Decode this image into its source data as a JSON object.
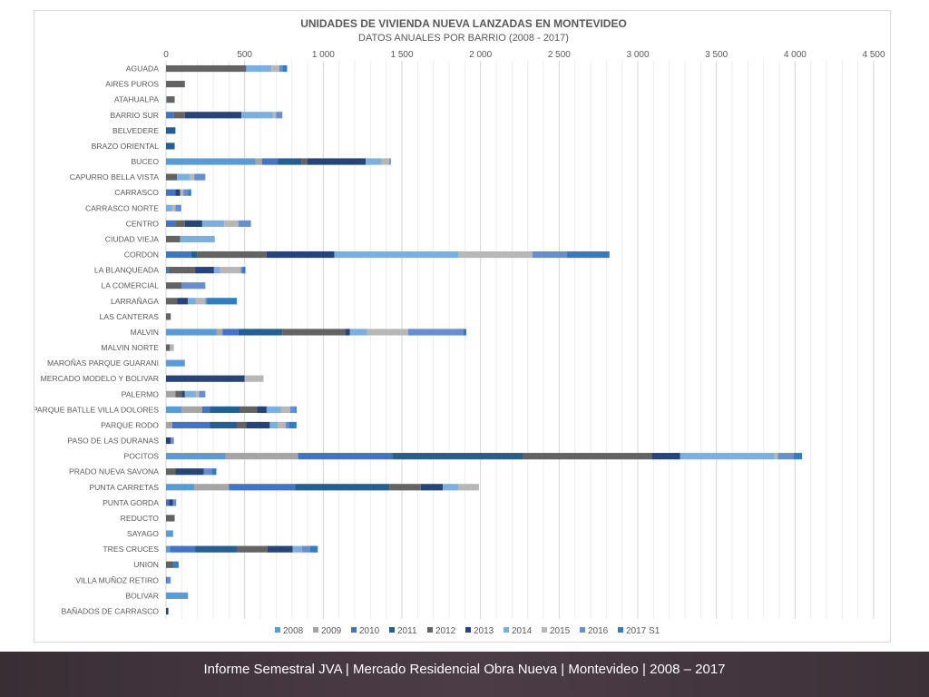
{
  "footer": {
    "text": "Informe Semestral JVA | Mercado Residencial Obra Nueva | Montevideo | 2008 – 2017"
  },
  "chart_data": {
    "type": "bar",
    "orientation": "horizontal",
    "stacked": true,
    "title": "UNIDADES DE VIVIENDA NUEVA LANZADAS EN MONTEVIDEO",
    "subtitle": "DATOS ANUALES POR BARRIO (2008 - 2017)",
    "xlim": [
      0,
      4500
    ],
    "x_ticks": [
      0,
      500,
      1000,
      1500,
      2000,
      2500,
      3000,
      3500,
      4000,
      4500
    ],
    "x_tick_labels": [
      "0",
      "500",
      "1 000",
      "1 500",
      "2 000",
      "2 500",
      "3 000",
      "3 500",
      "4 000",
      "4 500"
    ],
    "grid": "vertical",
    "legend_position": "bottom",
    "categories": [
      "AGUADA",
      "AIRES PUROS",
      "ATAHUALPA",
      "BARRIO SUR",
      "BELVEDERE",
      "BRAZO ORIENTAL",
      "BUCEO",
      "CAPURRO BELLA VISTA",
      "CARRASCO",
      "CARRASCO NORTE",
      "CENTRO",
      "CIUDAD VIEJA",
      "CORDON",
      "LA BLANQUEADA",
      "LA COMERCIAL",
      "LARRAÑAGA",
      "LAS CANTERAS",
      "MALVIN",
      "MALVIN NORTE",
      "MAROÑAS PARQUE GUARANI",
      "MERCADO MODELO Y BOLIVAR",
      "PALERMO",
      "PARQUE BATLLE VILLA DOLORES",
      "PARQUE RODO",
      "PASO DE LAS DURANAS",
      "POCITOS",
      "PRADO NUEVA SAVONA",
      "PUNTA CARRETAS",
      "PUNTA GORDA",
      "REDUCTO",
      "SAYAGO",
      "TRES CRUCES",
      "UNION",
      "VILLA MUÑOZ RETIRO",
      "BOLIVAR",
      "BAÑADOS DE CARRASCO"
    ],
    "series": [
      {
        "name": "2008",
        "color": "#5b9bd5",
        "values": [
          0,
          0,
          5,
          0,
          0,
          0,
          570,
          0,
          0,
          0,
          0,
          0,
          0,
          0,
          0,
          0,
          0,
          320,
          0,
          120,
          0,
          0,
          100,
          0,
          0,
          380,
          0,
          180,
          0,
          0,
          45,
          25,
          0,
          0,
          140,
          0
        ]
      },
      {
        "name": "2009",
        "color": "#a5a5a5",
        "values": [
          0,
          0,
          0,
          0,
          0,
          0,
          40,
          0,
          0,
          0,
          0,
          0,
          0,
          0,
          0,
          0,
          0,
          40,
          0,
          0,
          0,
          60,
          130,
          40,
          0,
          460,
          0,
          220,
          0,
          0,
          0,
          0,
          0,
          0,
          0,
          0
        ]
      },
      {
        "name": "2010",
        "color": "#4472c4",
        "values": [
          0,
          0,
          0,
          50,
          0,
          0,
          100,
          0,
          60,
          0,
          60,
          0,
          160,
          15,
          0,
          0,
          0,
          100,
          0,
          0,
          0,
          0,
          50,
          240,
          0,
          600,
          0,
          420,
          20,
          0,
          0,
          160,
          0,
          10,
          0,
          0
        ]
      },
      {
        "name": "2011",
        "color": "#255e91",
        "values": [
          0,
          0,
          0,
          0,
          60,
          55,
          150,
          0,
          0,
          0,
          0,
          0,
          40,
          0,
          0,
          0,
          0,
          280,
          0,
          0,
          0,
          0,
          190,
          170,
          0,
          830,
          0,
          600,
          0,
          0,
          0,
          270,
          0,
          0,
          0,
          0
        ]
      },
      {
        "name": "2012",
        "color": "#636363",
        "values": [
          510,
          120,
          50,
          70,
          0,
          0,
          40,
          70,
          0,
          0,
          60,
          90,
          440,
          170,
          100,
          70,
          30,
          400,
          25,
          0,
          0,
          40,
          110,
          60,
          0,
          820,
          60,
          200,
          0,
          55,
          0,
          190,
          50,
          0,
          0,
          0
        ]
      },
      {
        "name": "2013",
        "color": "#264478",
        "values": [
          0,
          0,
          0,
          360,
          0,
          0,
          370,
          0,
          30,
          0,
          110,
          0,
          430,
          120,
          0,
          70,
          0,
          30,
          0,
          0,
          500,
          20,
          60,
          150,
          30,
          180,
          180,
          140,
          25,
          0,
          0,
          160,
          0,
          0,
          0,
          15
        ]
      },
      {
        "name": "2014",
        "color": "#7cafdd",
        "values": [
          160,
          0,
          0,
          200,
          0,
          0,
          100,
          80,
          0,
          40,
          140,
          220,
          790,
          40,
          0,
          50,
          0,
          110,
          0,
          0,
          0,
          70,
          90,
          50,
          0,
          600,
          0,
          100,
          0,
          0,
          0,
          60,
          0,
          0,
          0,
          0
        ]
      },
      {
        "name": "2015",
        "color": "#b7b7b7",
        "values": [
          50,
          0,
          0,
          20,
          0,
          0,
          50,
          30,
          20,
          20,
          90,
          0,
          470,
          130,
          0,
          60,
          0,
          260,
          25,
          0,
          120,
          20,
          60,
          50,
          0,
          20,
          0,
          130,
          0,
          0,
          0,
          0,
          0,
          0,
          0,
          0
        ]
      },
      {
        "name": "2016",
        "color": "#698ed0",
        "values": [
          20,
          0,
          0,
          40,
          0,
          0,
          10,
          70,
          30,
          25,
          80,
          0,
          220,
          10,
          150,
          10,
          0,
          350,
          0,
          0,
          0,
          40,
          30,
          20,
          20,
          100,
          50,
          0,
          20,
          0,
          0,
          50,
          0,
          20,
          0,
          0
        ]
      },
      {
        "name": "2017 S1",
        "color": "#327dc2",
        "values": [
          30,
          0,
          0,
          0,
          0,
          0,
          0,
          0,
          20,
          10,
          0,
          0,
          270,
          20,
          0,
          190,
          0,
          20,
          0,
          0,
          0,
          0,
          10,
          50,
          0,
          55,
          30,
          0,
          0,
          0,
          0,
          50,
          30,
          0,
          0,
          0
        ]
      }
    ]
  }
}
